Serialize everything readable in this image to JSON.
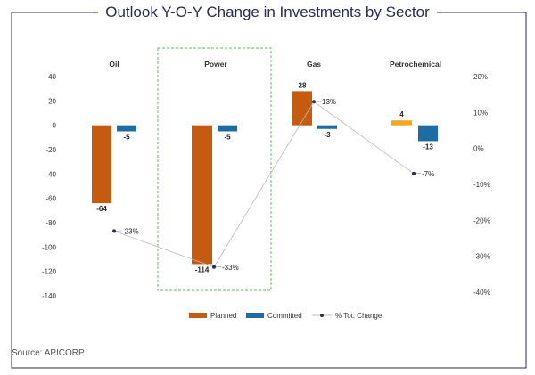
{
  "title": "Outlook Y-O-Y Change in Investments by Sector",
  "source": "Source: APICORP",
  "chart_data": {
    "type": "bar",
    "categories": [
      "Oil",
      "Power",
      "Gas",
      "Petrochemical"
    ],
    "series": [
      {
        "name": "Planned",
        "values": [
          -64,
          -114,
          28,
          4
        ],
        "labels": [
          "-64",
          "-114",
          "28",
          "4"
        ],
        "colors": [
          "#c55a11",
          "#c55a11",
          "#c55a11",
          "#f5a623"
        ]
      },
      {
        "name": "Committed",
        "values": [
          -5,
          -5,
          -3,
          -13
        ],
        "labels": [
          "-5",
          "-5",
          "-3",
          "-13"
        ],
        "colors": [
          "#1f6ca3",
          "#1f6ca3",
          "#1f6ca3",
          "#1f6ca3"
        ]
      }
    ],
    "line_series": {
      "name": "% Tot. Change",
      "values": [
        -23,
        -33,
        13,
        -7
      ],
      "labels": [
        "-23%",
        "-33%",
        "13%",
        "-7%"
      ],
      "color": "#2b2a55"
    },
    "left_axis": {
      "ylim": [
        -140,
        40
      ],
      "ticks": [
        40,
        20,
        0,
        -20,
        -40,
        -60,
        -80,
        -100,
        -120,
        -140
      ]
    },
    "right_axis": {
      "ylim": [
        -40,
        20
      ],
      "ticks": [
        "20%",
        "10%",
        "0%",
        "-10%",
        "-20%",
        "-30%",
        "-40%"
      ]
    },
    "highlight_category": "Power",
    "legend": [
      "Planned",
      "Committed",
      "% Tot. Change"
    ],
    "legend_position": "bottom",
    "grid": false
  }
}
